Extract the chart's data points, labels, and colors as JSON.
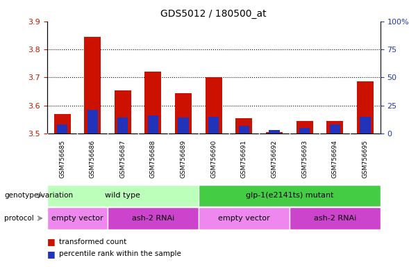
{
  "title": "GDS5012 / 180500_at",
  "samples": [
    "GSM756685",
    "GSM756686",
    "GSM756687",
    "GSM756688",
    "GSM756689",
    "GSM756690",
    "GSM756691",
    "GSM756692",
    "GSM756693",
    "GSM756694",
    "GSM756695"
  ],
  "transformed_count": [
    3.57,
    3.845,
    3.655,
    3.72,
    3.645,
    3.7,
    3.555,
    3.505,
    3.545,
    3.545,
    3.685
  ],
  "percentile_rank": [
    8,
    21,
    14,
    16,
    14,
    15,
    7,
    3,
    5,
    8,
    15
  ],
  "bar_bottom": 3.5,
  "ylim_left": [
    3.5,
    3.9
  ],
  "ylim_right": [
    0,
    100
  ],
  "yticks_left": [
    3.5,
    3.6,
    3.7,
    3.8,
    3.9
  ],
  "yticks_right": [
    0,
    25,
    50,
    75,
    100
  ],
  "ytick_labels_right": [
    "0",
    "25",
    "50",
    "75",
    "100%"
  ],
  "red_color": "#cc1100",
  "blue_color": "#2233bb",
  "genotype_groups": [
    {
      "label": "wild type",
      "start": 0,
      "end": 5,
      "color": "#bbffbb"
    },
    {
      "label": "glp-1(e2141ts) mutant",
      "start": 5,
      "end": 11,
      "color": "#44cc44"
    }
  ],
  "protocol_groups": [
    {
      "label": "empty vector",
      "start": 0,
      "end": 2,
      "color": "#ee88ee"
    },
    {
      "label": "ash-2 RNAi",
      "start": 2,
      "end": 5,
      "color": "#cc44cc"
    },
    {
      "label": "empty vector",
      "start": 5,
      "end": 8,
      "color": "#ee88ee"
    },
    {
      "label": "ash-2 RNAi",
      "start": 8,
      "end": 11,
      "color": "#cc44cc"
    }
  ],
  "legend_items": [
    {
      "label": "transformed count",
      "color": "#cc1100"
    },
    {
      "label": "percentile rank within the sample",
      "color": "#2233bb"
    }
  ],
  "bg_color": "#ffffff",
  "plot_bg": "#ffffff",
  "tick_label_color_left": "#cc1100",
  "tick_label_color_right": "#2233bb",
  "bar_width": 0.55,
  "blue_bar_width": 0.35,
  "xtick_bg": "#cccccc",
  "arrow_color": "#888888"
}
